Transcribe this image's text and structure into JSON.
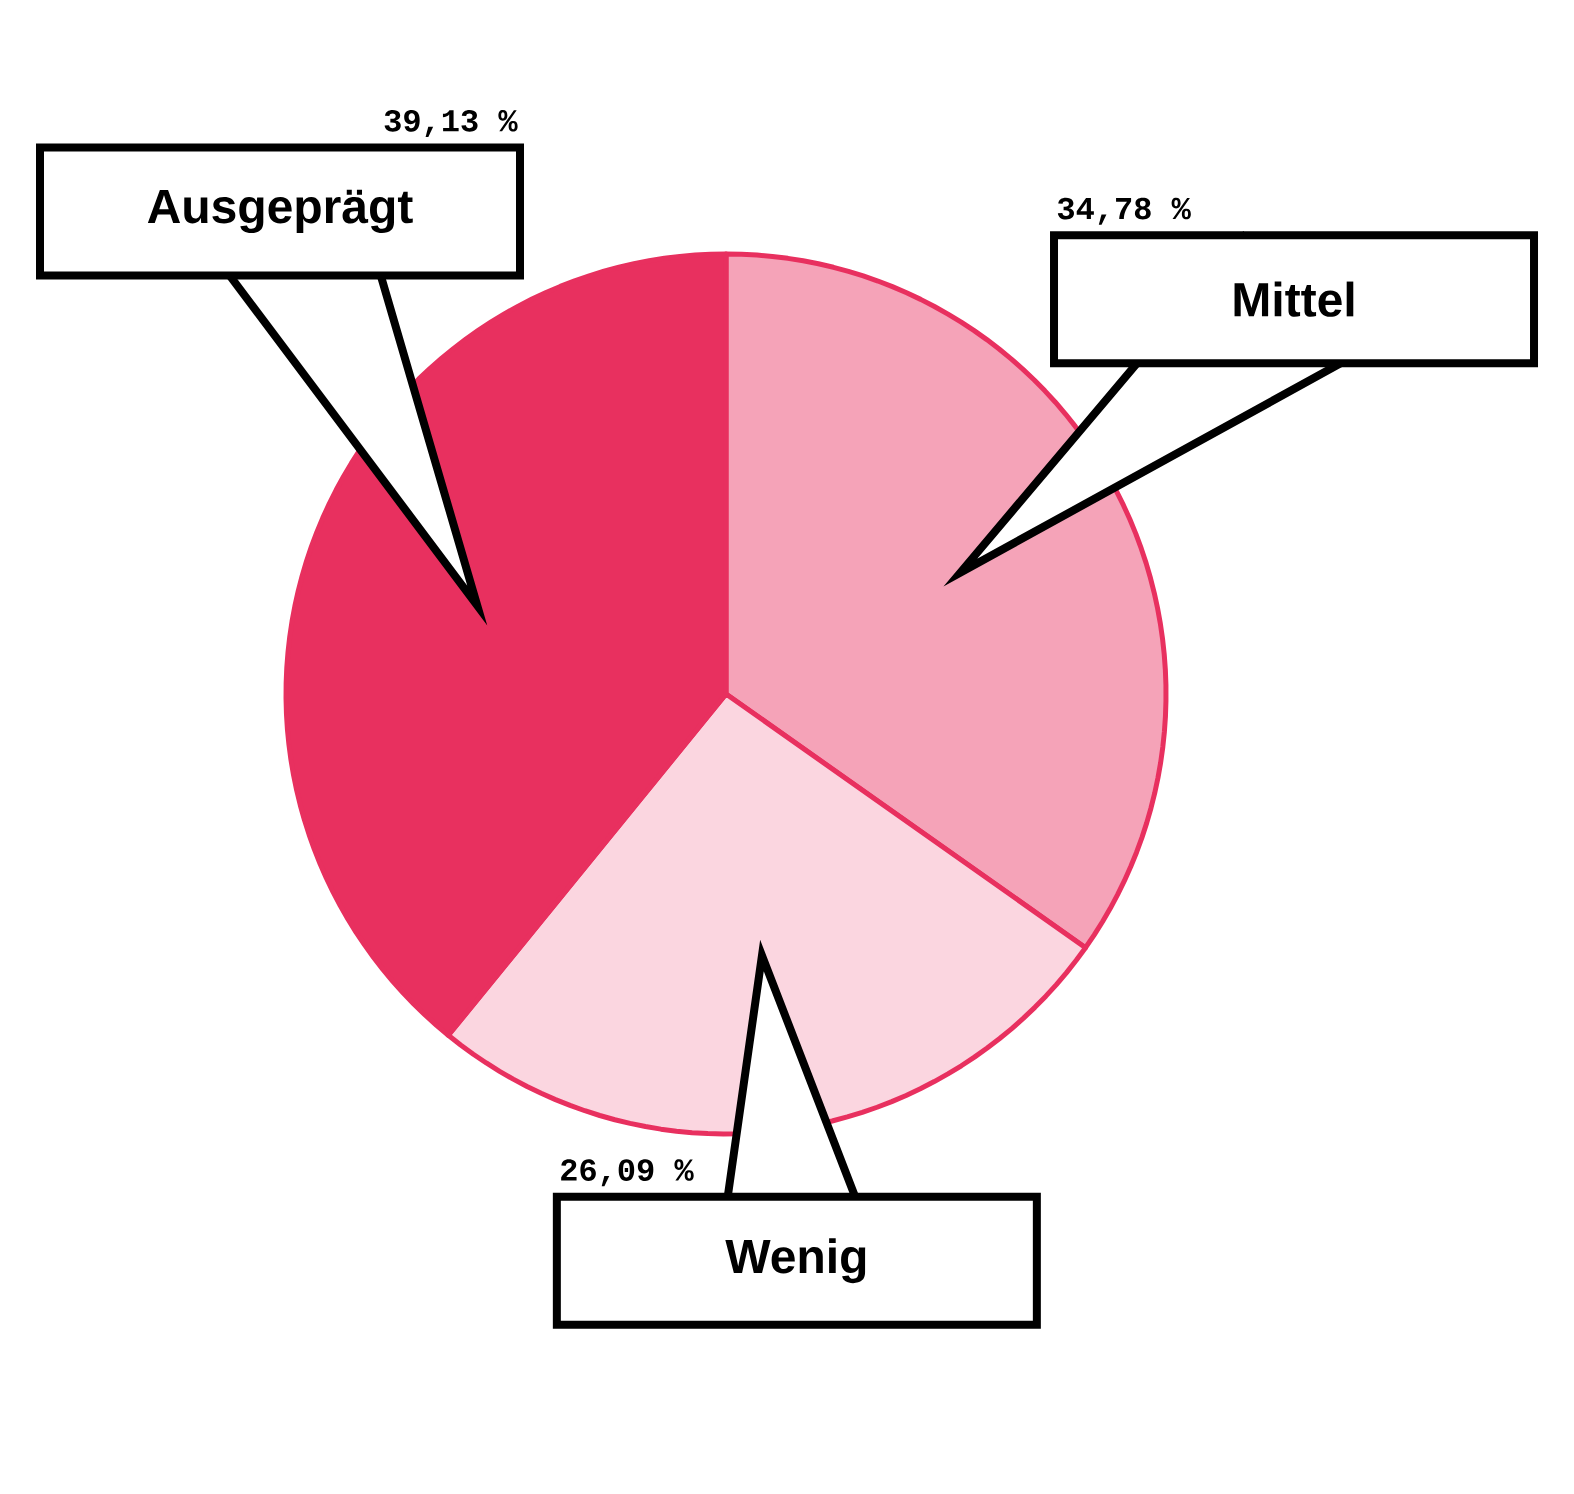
{
  "chart_data": {
    "type": "pie",
    "categories": [
      "Mittel",
      "Wenig",
      "Ausgeprägt"
    ],
    "values": [
      34.78,
      26.09,
      39.13
    ],
    "value_labels": [
      "34,78 %",
      "26,09 %",
      "39,13 %"
    ],
    "colors": [
      "#f5a3b8",
      "#fbd6e0",
      "#e8305f"
    ]
  }
}
